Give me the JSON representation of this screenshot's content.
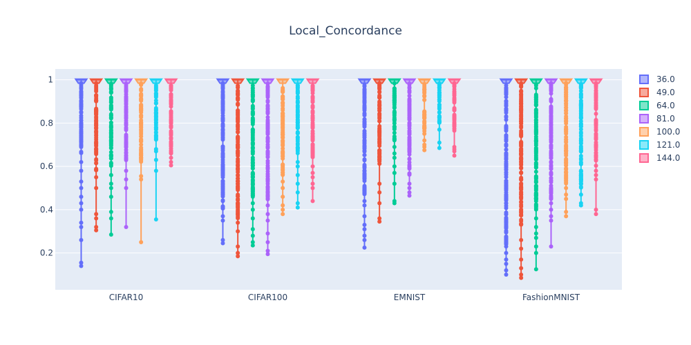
{
  "chart_data": {
    "type": "box",
    "title": "Local_Concordance",
    "xlabel": "",
    "ylabel": "",
    "categories": [
      "CIFAR10",
      "CIFAR100",
      "EMNIST",
      "FashionMNIST"
    ],
    "ylim": [
      0.03,
      1.05
    ],
    "yticks": [
      0.2,
      0.4,
      0.6,
      0.8,
      1
    ],
    "ytick_labels": [
      "0.2",
      "0.4",
      "0.6",
      "0.8",
      "1"
    ],
    "grid": true,
    "legend_position": "right",
    "series": [
      {
        "name": "36.0",
        "color": "#636efa",
        "min": [
          0.14,
          0.245,
          0.225,
          0.1
        ],
        "dense_low": [
          0.66,
          0.4,
          0.47,
          0.24
        ],
        "outliers": [
          [
            0.155,
            0.26,
            0.32,
            0.34,
            0.4,
            0.43,
            0.46,
            0.5,
            0.53,
            0.58,
            0.62
          ],
          [
            0.26,
            0.35,
            0.37,
            0.44,
            0.47,
            0.52,
            0.56,
            0.62
          ],
          [
            0.26,
            0.28,
            0.31,
            0.33,
            0.37,
            0.42,
            0.44,
            0.5
          ],
          [
            0.12,
            0.15,
            0.17,
            0.2,
            0.23
          ]
        ]
      },
      {
        "name": "49.0",
        "color": "#ef553b",
        "min": [
          0.305,
          0.185,
          0.345,
          0.085
        ],
        "dense_low": [
          0.58,
          0.36,
          0.6,
          0.32
        ],
        "outliers": [
          [
            0.32,
            0.36,
            0.38,
            0.5,
            0.55
          ],
          [
            0.2,
            0.23,
            0.3,
            0.34,
            0.39,
            0.42,
            0.45
          ],
          [
            0.36,
            0.43,
            0.48,
            0.52
          ],
          [
            0.1,
            0.13,
            0.17,
            0.22,
            0.26
          ]
        ]
      },
      {
        "name": "64.0",
        "color": "#00cc96",
        "min": [
          0.285,
          0.235,
          0.43,
          0.125
        ],
        "dense_low": [
          0.6,
          0.46,
          0.72,
          0.4
        ],
        "outliers": [
          [
            0.36,
            0.39,
            0.46,
            0.5,
            0.52,
            0.56
          ],
          [
            0.25,
            0.28,
            0.31,
            0.36,
            0.4,
            0.43
          ],
          [
            0.44,
            0.52,
            0.57,
            0.6,
            0.64,
            0.66,
            0.69
          ],
          [
            0.2,
            0.23,
            0.27,
            0.29,
            0.32,
            0.36
          ]
        ]
      },
      {
        "name": "81.0",
        "color": "#ab63fa",
        "min": [
          0.32,
          0.195,
          0.465,
          0.23
        ],
        "dense_low": [
          0.62,
          0.44,
          0.56,
          0.45
        ],
        "outliers": [
          [
            0.5,
            0.54,
            0.58
          ],
          [
            0.21,
            0.25,
            0.29,
            0.35,
            0.38,
            0.42
          ],
          [
            0.48,
            0.5,
            0.52
          ],
          [
            0.35,
            0.37,
            0.4,
            0.43
          ]
        ]
      },
      {
        "name": "100.0",
        "color": "#ffa15a",
        "min": [
          0.25,
          0.38,
          0.675,
          0.37
        ],
        "dense_low": [
          0.62,
          0.56,
          0.75,
          0.52
        ],
        "outliers": [
          [
            0.54,
            0.555
          ],
          [
            0.4,
            0.42,
            0.46,
            0.5,
            0.53
          ],
          [
            0.69,
            0.7,
            0.72
          ],
          [
            0.39,
            0.45,
            0.47,
            0.5
          ]
        ]
      },
      {
        "name": "121.0",
        "color": "#19d3f3",
        "min": [
          0.355,
          0.41,
          0.685,
          0.42
        ],
        "dense_low": [
          0.72,
          0.66,
          0.8,
          0.5
        ],
        "outliers": [
          [
            0.58,
            0.63,
            0.67,
            0.68
          ],
          [
            0.43,
            0.48,
            0.52,
            0.56,
            0.6,
            0.62
          ],
          [
            0.71,
            0.77
          ],
          [
            0.43,
            0.47
          ]
        ]
      },
      {
        "name": "144.0",
        "color": "#ff6692",
        "min": [
          0.605,
          0.44,
          0.65,
          0.38
        ],
        "dense_low": [
          0.66,
          0.64,
          0.76,
          0.6
        ],
        "outliers": [
          [
            0.62,
            0.64,
            0.66
          ],
          [
            0.5,
            0.52,
            0.55,
            0.57,
            0.6
          ],
          [
            0.67,
            0.68,
            0.69
          ],
          [
            0.4,
            0.54,
            0.56,
            0.58
          ]
        ]
      }
    ]
  }
}
